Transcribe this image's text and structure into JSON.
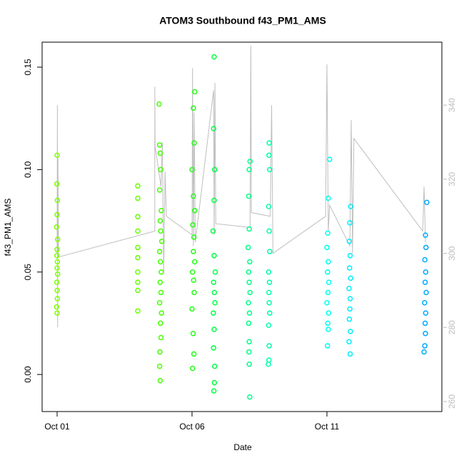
{
  "chart_data": {
    "type": "scatter",
    "title": "ATOM3 Southbound f43_PM1_AMS",
    "x_label": "Date",
    "y_label": "f43_PM1_AMS",
    "xlim": [
      0.444,
      15.26
    ],
    "xticks": [
      {
        "value": 1,
        "label": "Oct 01"
      },
      {
        "value": 6,
        "label": "Oct 06"
      },
      {
        "value": 11,
        "label": "Oct 11"
      }
    ],
    "ylim": [
      -0.0181,
      0.1622
    ],
    "yticks": [
      {
        "value": 0,
        "label": "0.00"
      },
      0.05,
      {
        "value": 0.1,
        "label": "0.10"
      },
      0.15
    ],
    "y2lim": [
      257.3,
      357.0
    ],
    "y2ticks": [
      260,
      280,
      300,
      320,
      340
    ],
    "y2_color": "#bebebe",
    "series": [
      {
        "type": "line",
        "axis": "y2",
        "color": "#bebebe",
        "x": [
          1.0,
          1.01,
          1.02,
          1.03,
          1.05,
          4.62,
          4.62,
          4.63,
          4.85,
          4.9,
          4.95,
          5.0,
          5.05,
          6.0,
          6.02,
          6.05,
          6.08,
          6.12,
          6.8,
          6.82,
          6.85,
          6.88,
          8.15,
          8.18,
          8.2,
          8.9,
          8.95,
          9.0,
          10.95,
          11.0,
          11.05,
          11.1,
          11.85,
          11.9,
          11.95,
          12.0,
          14.55,
          14.6,
          14.65
        ],
        "values": [
          300,
          340,
          280,
          326,
          299,
          306,
          345,
          329,
          318,
          330,
          295,
          322,
          310,
          305,
          350,
          302,
          338,
          303,
          344,
          305,
          346,
          308,
          307,
          356,
          311,
          310,
          340,
          300,
          310,
          351,
          306,
          313,
          302,
          336,
          300,
          331,
          306,
          318,
          303
        ]
      },
      {
        "color": "#7fff00",
        "x": [
          1.0,
          0.99,
          1.01,
          1.0,
          0.98,
          1.02,
          1.0,
          0.99,
          1.01,
          1.0,
          1.02,
          0.99,
          1.0,
          1.01,
          0.98,
          1.0
        ],
        "values": [
          0.107,
          0.093,
          0.085,
          0.078,
          0.072,
          0.066,
          0.061,
          0.058,
          0.055,
          0.052,
          0.049,
          0.045,
          0.041,
          0.037,
          0.033,
          0.03
        ]
      },
      {
        "color": "#66ff00",
        "x": [
          3.99,
          3.99,
          3.99,
          3.99,
          3.99,
          3.99,
          3.99,
          3.99,
          3.99,
          3.99
        ],
        "values": [
          0.092,
          0.086,
          0.077,
          0.07,
          0.062,
          0.057,
          0.05,
          0.045,
          0.041,
          0.031
        ]
      },
      {
        "color": "#44ff00",
        "x": [
          4.78,
          4.8,
          4.82,
          4.84,
          4.8,
          4.86,
          4.82,
          4.84,
          4.88,
          4.8,
          4.83,
          4.86,
          4.82,
          4.85,
          4.8,
          4.87,
          4.83,
          4.85,
          4.81,
          4.8,
          4.82
        ],
        "values": [
          0.132,
          0.112,
          0.108,
          0.1,
          0.09,
          0.08,
          0.075,
          0.07,
          0.065,
          0.06,
          0.055,
          0.05,
          0.045,
          0.04,
          0.035,
          0.03,
          0.025,
          0.018,
          0.011,
          0.004,
          -0.003
        ]
      },
      {
        "color": "#22ff11",
        "x": [
          6.1,
          6.05,
          6.08,
          6.0,
          6.05,
          6.1,
          6.03,
          6.07,
          6.05,
          6.1,
          6.02,
          6.06,
          6.08,
          6.0,
          6.04,
          6.07,
          6.02
        ],
        "values": [
          0.138,
          0.13,
          0.113,
          0.1,
          0.087,
          0.08,
          0.073,
          0.067,
          0.06,
          0.055,
          0.05,
          0.046,
          0.04,
          0.032,
          0.02,
          0.01,
          0.003
        ]
      },
      {
        "color": "#00ff44",
        "x": [
          6.82,
          6.8,
          6.84,
          6.82,
          6.78,
          6.82,
          6.86,
          6.8,
          6.83,
          6.85,
          6.79,
          6.82,
          6.8,
          6.84,
          6.83,
          6.81
        ],
        "values": [
          0.155,
          0.12,
          0.1,
          0.085,
          0.07,
          0.058,
          0.05,
          0.045,
          0.04,
          0.035,
          0.03,
          0.022,
          0.013,
          0.004,
          -0.004,
          -0.008
        ]
      },
      {
        "color": "#00ff88",
        "x": [
          8.15,
          8.12,
          8.1,
          8.12,
          8.08,
          8.14,
          8.1,
          8.12,
          8.15,
          8.09,
          8.13,
          8.1,
          8.12,
          8.11,
          8.12,
          8.14
        ],
        "values": [
          0.104,
          0.1,
          0.087,
          0.071,
          0.062,
          0.055,
          0.05,
          0.045,
          0.04,
          0.035,
          0.03,
          0.025,
          0.016,
          0.011,
          0.005,
          -0.011
        ]
      },
      {
        "color": "#00ffaa",
        "x": [
          8.86,
          8.85,
          8.88,
          8.84,
          8.86,
          8.88,
          8.84,
          8.87,
          8.85,
          8.86,
          8.88,
          8.84,
          8.86,
          8.85,
          8.83
        ],
        "values": [
          0.113,
          0.107,
          0.1,
          0.082,
          0.07,
          0.06,
          0.05,
          0.045,
          0.04,
          0.035,
          0.03,
          0.024,
          0.014,
          0.007,
          0.005
        ]
      },
      {
        "color": "#00ffee",
        "x": [
          11.1,
          11.05,
          11.03,
          11.0,
          11.05,
          11.02,
          11.07,
          11.04,
          11.0,
          11.06,
          11.03,
          11.05,
          11.02
        ],
        "values": [
          0.105,
          0.086,
          0.069,
          0.062,
          0.055,
          0.05,
          0.045,
          0.04,
          0.035,
          0.03,
          0.025,
          0.022,
          0.014
        ]
      },
      {
        "color": "#00eeff",
        "x": [
          11.88,
          11.85,
          11.83,
          11.86,
          11.84,
          11.88,
          11.82,
          11.86,
          11.85,
          11.83,
          11.87,
          11.82,
          11.86
        ],
        "values": [
          0.082,
          0.074,
          0.065,
          0.058,
          0.052,
          0.047,
          0.042,
          0.037,
          0.032,
          0.027,
          0.021,
          0.016,
          0.01
        ]
      },
      {
        "color": "#00aaff",
        "x": [
          14.7,
          14.65,
          14.67,
          14.63,
          14.66,
          14.64,
          14.68,
          14.62,
          14.66,
          14.64,
          14.65,
          14.63,
          14.6
        ],
        "values": [
          0.084,
          0.068,
          0.062,
          0.056,
          0.05,
          0.045,
          0.04,
          0.035,
          0.03,
          0.025,
          0.02,
          0.014,
          0.011
        ]
      }
    ]
  }
}
